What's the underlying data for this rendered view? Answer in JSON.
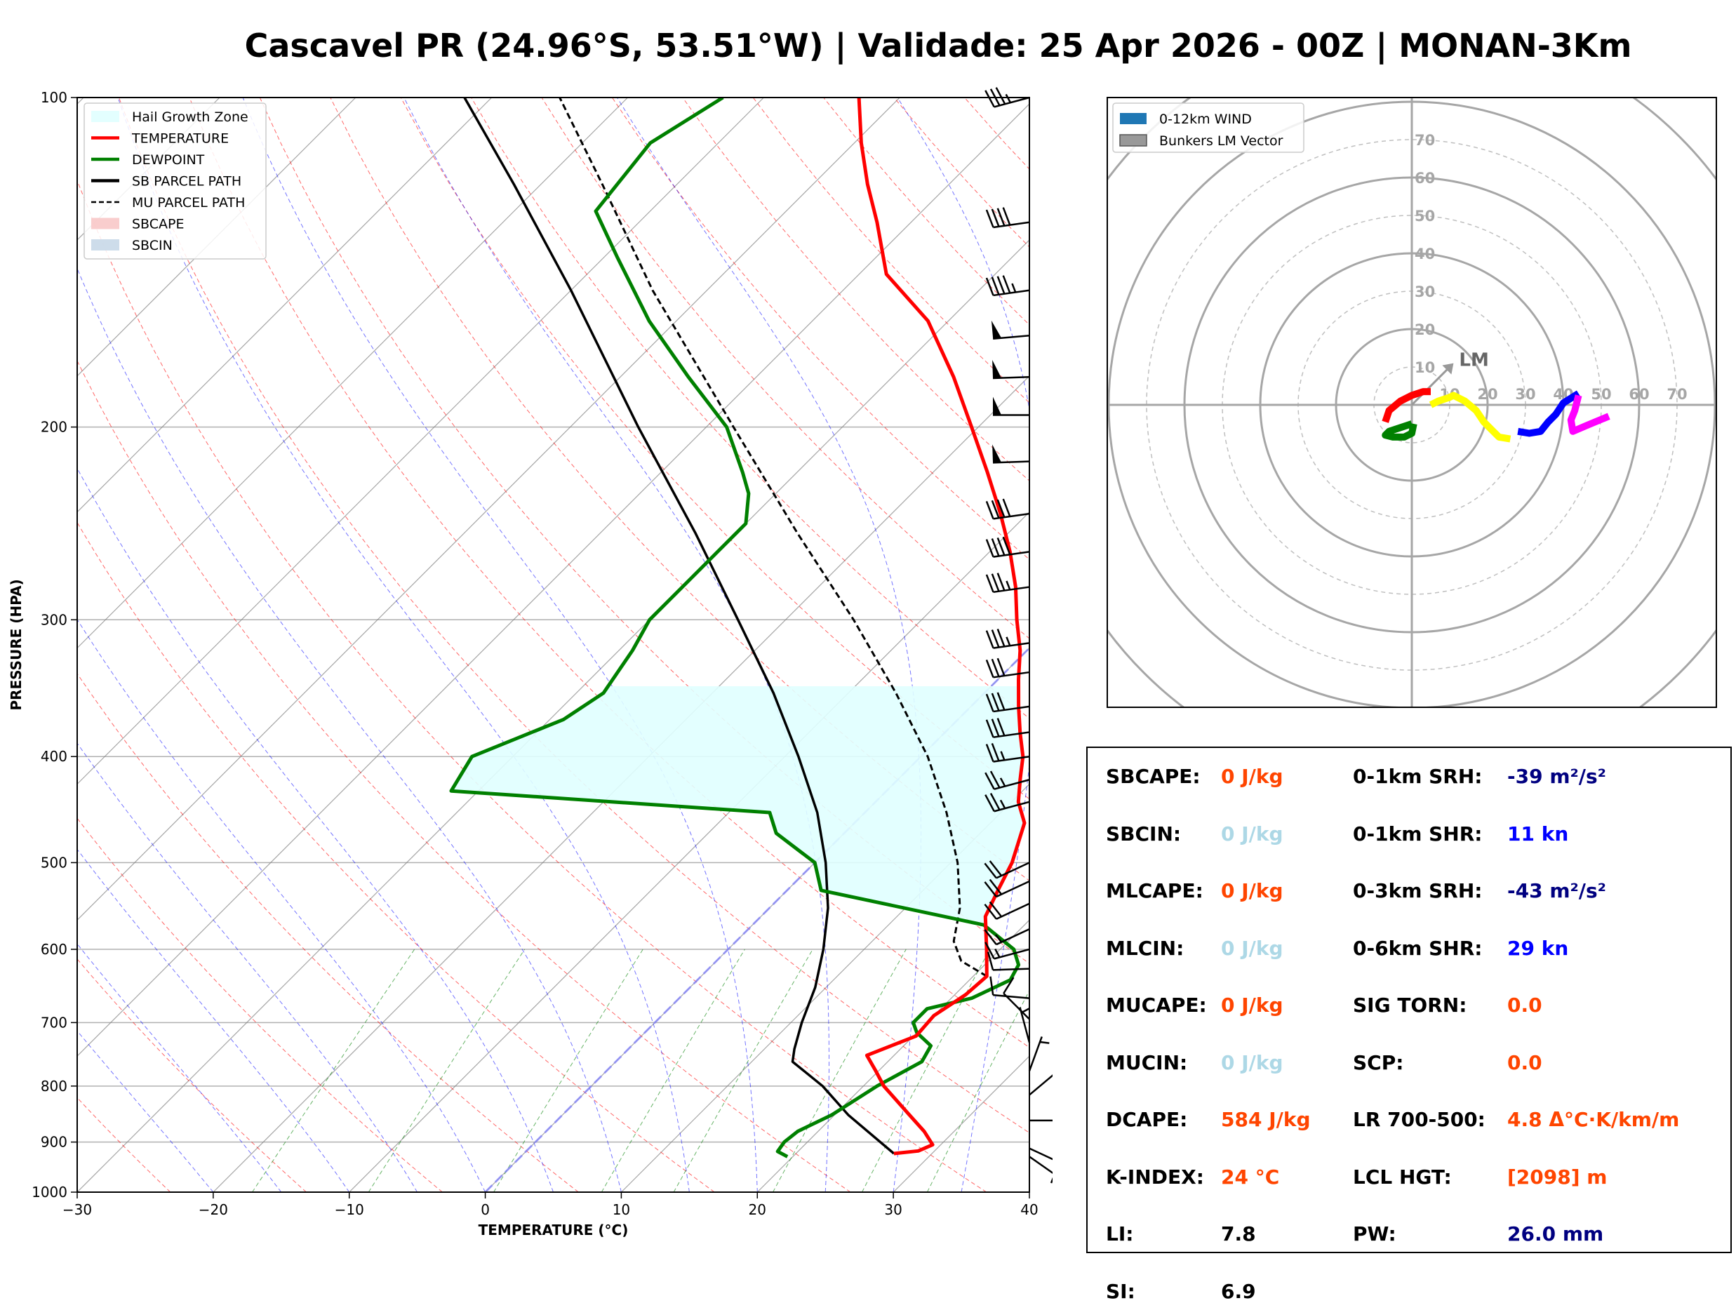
{
  "title": "Cascavel PR (24.96°S, 53.51°W) | Validade: 25 Apr 2026 - 00Z | MONAN-3Km",
  "colors": {
    "temperature": "#ff0000",
    "dewpoint": "#008000",
    "sb_parcel": "#000000",
    "mu_parcel": "#000000",
    "hail_zone": "#e0ffff",
    "dry_adiabat": "#ff0000",
    "moist_adiabat": "#0000ff",
    "mixing_ratio": "#008000",
    "isotherm": "#808080",
    "freezing_line": "#8080ff"
  },
  "chart_data": [
    {
      "type": "line",
      "subtype": "skew-t log-p",
      "xlabel": "TEMPERATURE (°C)",
      "ylabel": "PRESSURE (HPA)",
      "xlim": [
        -30,
        40
      ],
      "ylim": [
        1000,
        100
      ],
      "y_scale": "log",
      "x_ticks": [
        "−30",
        "−20",
        "−10",
        "0",
        "10",
        "20",
        "30",
        "40"
      ],
      "y_ticks": [
        "1000",
        "900",
        "800",
        "700",
        "600",
        "500",
        "400",
        "300",
        "200",
        "100"
      ],
      "grid": true,
      "legend_position": "top-left",
      "legend": [
        {
          "label": "Hail Growth Zone",
          "style": "fill",
          "color": "#e0ffff"
        },
        {
          "label": "TEMPERATURE",
          "style": "line",
          "color": "#ff0000"
        },
        {
          "label": "DEWPOINT",
          "style": "line",
          "color": "#008000"
        },
        {
          "label": "SB PARCEL PATH",
          "style": "line",
          "color": "#000000"
        },
        {
          "label": "MU PARCEL PATH",
          "style": "dashed",
          "color": "#000000"
        },
        {
          "label": "SBCAPE",
          "style": "fill",
          "color": "#f8c8c8"
        },
        {
          "label": "SBCIN",
          "style": "fill",
          "color": "#c8d8e8"
        }
      ],
      "series": [
        {
          "name": "TEMPERATURE",
          "points": [
            [
              922,
              27.2
            ],
            [
              917,
              28.8
            ],
            [
              905,
              29.4
            ],
            [
              880,
              27.8
            ],
            [
              850,
              25.5
            ],
            [
              800,
              21.5
            ],
            [
              775,
              19.8
            ],
            [
              750,
              18.0
            ],
            [
              720,
              20.2
            ],
            [
              690,
              20.0
            ],
            [
              660,
              20.8
            ],
            [
              635,
              21.0
            ],
            [
              600,
              19.0
            ],
            [
              560,
              16.5
            ],
            [
              530,
              15.5
            ],
            [
              500,
              14.5
            ],
            [
              460,
              12.5
            ],
            [
              440,
              10.5
            ],
            [
              420,
              9.0
            ],
            [
              400,
              7.5
            ],
            [
              380,
              5.5
            ],
            [
              360,
              3.5
            ],
            [
              340,
              1.5
            ],
            [
              320,
              -0.5
            ],
            [
              300,
              -3.0
            ],
            [
              280,
              -5.5
            ],
            [
              260,
              -8.5
            ],
            [
              240,
              -12.0
            ],
            [
              220,
              -16.0
            ],
            [
              200,
              -20.5
            ],
            [
              180,
              -25.5
            ],
            [
              160,
              -31.5
            ],
            [
              145,
              -38.0
            ],
            [
              130,
              -42.5
            ],
            [
              120,
              -46.0
            ],
            [
              110,
              -49.5
            ],
            [
              100,
              -53.0
            ]
          ]
        },
        {
          "name": "DEWPOINT",
          "points": [
            [
              928,
              19.6
            ],
            [
              918,
              18.5
            ],
            [
              900,
              18.3
            ],
            [
              880,
              18.5
            ],
            [
              850,
              19.8
            ],
            [
              800,
              21.0
            ],
            [
              760,
              22.5
            ],
            [
              735,
              22.0
            ],
            [
              715,
              20.0
            ],
            [
              700,
              19.0
            ],
            [
              680,
              19.0
            ],
            [
              665,
              21.5
            ],
            [
              640,
              23.0
            ],
            [
              620,
              22.5
            ],
            [
              600,
              21.0
            ],
            [
              570,
              17.0
            ],
            [
              530,
              2.5
            ],
            [
              500,
              0.0
            ],
            [
              470,
              -5.0
            ],
            [
              450,
              -7.0
            ],
            [
              430,
              -32.0
            ],
            [
              400,
              -33.0
            ],
            [
              370,
              -29.0
            ],
            [
              350,
              -28.0
            ],
            [
              320,
              -29.0
            ],
            [
              300,
              -30.0
            ],
            [
              280,
              -30.0
            ],
            [
              260,
              -30.0
            ],
            [
              245,
              -30.0
            ],
            [
              230,
              -32.0
            ],
            [
              220,
              -34.0
            ],
            [
              200,
              -38.5
            ],
            [
              180,
              -45.0
            ],
            [
              160,
              -52.0
            ],
            [
              140,
              -59.0
            ],
            [
              127,
              -64.0
            ],
            [
              110,
              -65.0
            ],
            [
              100,
              -63.0
            ]
          ]
        },
        {
          "name": "SB PARCEL PATH",
          "points": [
            [
              922,
              27.2
            ],
            [
              850,
              21.0
            ],
            [
              800,
              17.0
            ],
            [
              760,
              13.0
            ],
            [
              740,
              12.2
            ],
            [
              700,
              10.8
            ],
            [
              650,
              9.2
            ],
            [
              600,
              7.0
            ],
            [
              550,
              4.3
            ],
            [
              500,
              0.8
            ],
            [
              450,
              -3.5
            ],
            [
              400,
              -9.0
            ],
            [
              350,
              -15.5
            ],
            [
              300,
              -23.5
            ],
            [
              250,
              -33.0
            ],
            [
              200,
              -45.0
            ],
            [
              150,
              -60.0
            ],
            [
              120,
              -72.0
            ],
            [
              100,
              -82.0
            ]
          ]
        },
        {
          "name": "MU PARCEL PATH",
          "points": [
            [
              635,
              21.0
            ],
            [
              615,
              18.0
            ],
            [
              590,
              16.0
            ],
            [
              550,
              14.0
            ],
            [
              500,
              10.5
            ],
            [
              450,
              6.0
            ],
            [
              400,
              0.5
            ],
            [
              350,
              -6.5
            ],
            [
              300,
              -15.0
            ],
            [
              250,
              -25.5
            ],
            [
              200,
              -38.0
            ],
            [
              150,
              -54.0
            ],
            [
              120,
              -65.5
            ],
            [
              100,
              -75.0
            ]
          ]
        }
      ],
      "hail_growth_zone": {
        "from_hpa": 575,
        "to_hpa": 345
      }
    },
    {
      "type": "line",
      "subtype": "hodograph",
      "rings": [
        10,
        20,
        30,
        40,
        50,
        60,
        70
      ],
      "ring_labels": [
        "10",
        "20",
        "30",
        "40",
        "50",
        "60",
        "70"
      ],
      "legend_position": "top-left",
      "legend": [
        {
          "label": "0-12km WIND",
          "color": "#1f77b4"
        },
        {
          "label": "Bunkers LM Vector",
          "color": "#999999"
        }
      ],
      "lm_label": "LM",
      "lm_vector": [
        11,
        11
      ],
      "segments": [
        {
          "color": "#008000",
          "points": [
            [
              0,
              -5
            ],
            [
              -3,
              -6
            ],
            [
              -6,
              -7
            ],
            [
              -7,
              -8
            ],
            [
              -5,
              -8.5
            ],
            [
              -2,
              -8.5
            ],
            [
              0,
              -7.5
            ],
            [
              0.5,
              -5
            ]
          ]
        },
        {
          "color": "#ff0000",
          "points": [
            [
              -7,
              -4.5
            ],
            [
              -6,
              -1.5
            ],
            [
              -3,
              1
            ],
            [
              0,
              2.5
            ],
            [
              3,
              3.5
            ],
            [
              5,
              3.5
            ]
          ]
        },
        {
          "color": "#ffff00",
          "points": [
            [
              5,
              0
            ],
            [
              7,
              1
            ],
            [
              10,
              2
            ],
            [
              11,
              2.5
            ],
            [
              14,
              1
            ],
            [
              17,
              -1.5
            ],
            [
              19,
              -4.5
            ],
            [
              21,
              -6.5
            ],
            [
              23,
              -8.5
            ],
            [
              26,
              -9
            ]
          ]
        },
        {
          "color": "#0000ff",
          "points": [
            [
              28,
              -7
            ],
            [
              31,
              -7.5
            ],
            [
              34,
              -7
            ],
            [
              36,
              -4.5
            ],
            [
              38,
              -2.5
            ],
            [
              40,
              0.5
            ],
            [
              44,
              3
            ]
          ]
        },
        {
          "color": "#ff00ff",
          "points": [
            [
              44,
              2.5
            ],
            [
              43,
              -1.5
            ],
            [
              42,
              -4
            ],
            [
              42.5,
              -7
            ],
            [
              46,
              -5.5
            ],
            [
              52,
              -3
            ]
          ]
        }
      ]
    }
  ],
  "wind_barbs_kn": [
    {
      "p": 100,
      "spd": 35,
      "dir": 255
    },
    {
      "p": 130,
      "spd": 40,
      "dir": 262
    },
    {
      "p": 150,
      "spd": 45,
      "dir": 262
    },
    {
      "p": 165,
      "spd": 50,
      "dir": 265
    },
    {
      "p": 180,
      "spd": 50,
      "dir": 268
    },
    {
      "p": 195,
      "spd": 50,
      "dir": 270
    },
    {
      "p": 215,
      "spd": 50,
      "dir": 268
    },
    {
      "p": 240,
      "spd": 40,
      "dir": 262
    },
    {
      "p": 260,
      "spd": 40,
      "dir": 262
    },
    {
      "p": 280,
      "spd": 35,
      "dir": 262
    },
    {
      "p": 315,
      "spd": 35,
      "dir": 262
    },
    {
      "p": 335,
      "spd": 30,
      "dir": 262
    },
    {
      "p": 360,
      "spd": 30,
      "dir": 262
    },
    {
      "p": 380,
      "spd": 30,
      "dir": 262
    },
    {
      "p": 400,
      "spd": 25,
      "dir": 262
    },
    {
      "p": 420,
      "spd": 25,
      "dir": 255
    },
    {
      "p": 440,
      "spd": 25,
      "dir": 255
    },
    {
      "p": 500,
      "spd": 20,
      "dir": 245
    },
    {
      "p": 520,
      "spd": 20,
      "dir": 245
    },
    {
      "p": 545,
      "spd": 20,
      "dir": 245
    },
    {
      "p": 575,
      "spd": 15,
      "dir": 245
    },
    {
      "p": 600,
      "spd": 15,
      "dir": 255
    },
    {
      "p": 625,
      "spd": 10,
      "dir": 268
    },
    {
      "p": 665,
      "spd": 10,
      "dir": 275
    },
    {
      "p": 695,
      "spd": 10,
      "dir": 315
    },
    {
      "p": 730,
      "spd": 5,
      "dir": 345
    },
    {
      "p": 775,
      "spd": 5,
      "dir": 20
    },
    {
      "p": 815,
      "spd": 5,
      "dir": 50
    },
    {
      "p": 860,
      "spd": 5,
      "dir": 90
    },
    {
      "p": 912,
      "spd": 5,
      "dir": 115
    },
    {
      "p": 928,
      "spd": 5,
      "dir": 125
    }
  ],
  "indices": {
    "left": [
      {
        "label": "SBCAPE:",
        "value": "0 J/kg",
        "color": "#ff4500"
      },
      {
        "label": "SBCIN:",
        "value": "0 J/kg",
        "color": "#add8e6"
      },
      {
        "label": "MLCAPE:",
        "value": "0 J/kg",
        "color": "#ff4500"
      },
      {
        "label": "MLCIN:",
        "value": "0 J/kg",
        "color": "#add8e6"
      },
      {
        "label": "MUCAPE:",
        "value": "0 J/kg",
        "color": "#ff4500"
      },
      {
        "label": "MUCIN:",
        "value": "0 J/kg",
        "color": "#add8e6"
      },
      {
        "label": "DCAPE:",
        "value": "584 J/kg",
        "color": "#ff4500"
      },
      {
        "label": "K-INDEX:",
        "value": "24 °C",
        "color": "#ff4500"
      },
      {
        "label": "LI:",
        "value": "7.8",
        "color": "#000000"
      },
      {
        "label": "SI:",
        "value": "6.9",
        "color": "#000000"
      }
    ],
    "right": [
      {
        "label": "0-1km SRH:",
        "value": "-39 m²/s²",
        "color": "#000080"
      },
      {
        "label": "0-1km SHR:",
        "value": "11 kn",
        "color": "#0000ff"
      },
      {
        "label": "0-3km SRH:",
        "value": "-43 m²/s²",
        "color": "#000080"
      },
      {
        "label": "0-6km SHR:",
        "value": "29 kn",
        "color": "#0000ff"
      },
      {
        "label": "SIG TORN:",
        "value": "0.0",
        "color": "#ff4500"
      },
      {
        "label": "SCP:",
        "value": "0.0",
        "color": "#ff4500"
      },
      {
        "label": "LR 700-500:",
        "value": "4.8 Δ°C·K/km/m",
        "color": "#ff4500"
      },
      {
        "label": "LCL HGT:",
        "value": "[2098] m",
        "color": "#ff4500"
      },
      {
        "label": "PW:",
        "value": "26.0 mm",
        "color": "#000080"
      }
    ]
  }
}
